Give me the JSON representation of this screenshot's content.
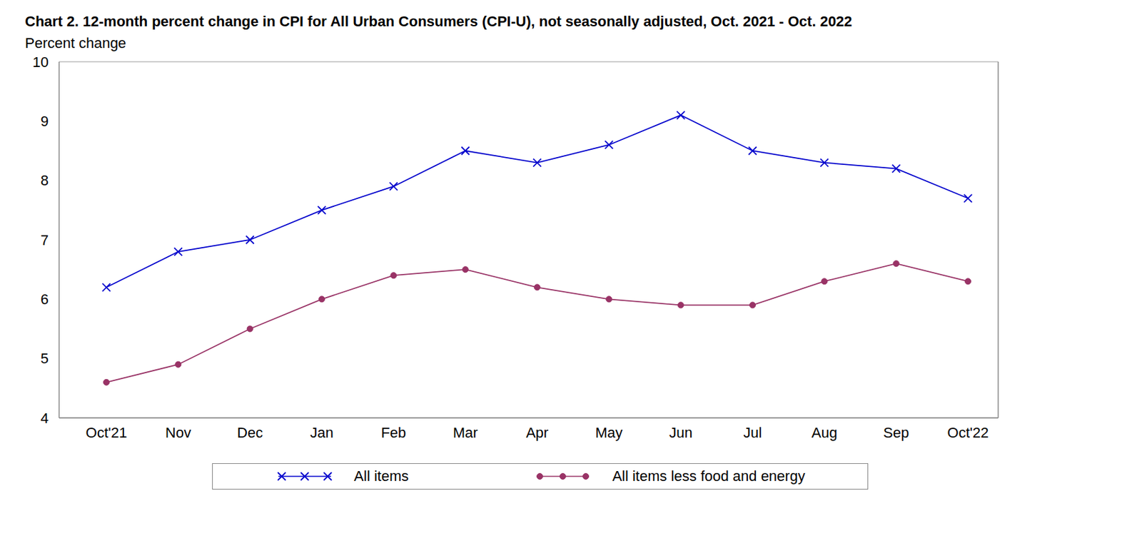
{
  "chart_data": {
    "type": "line",
    "title": "Chart 2. 12-month percent change in CPI for All Urban Consumers (CPI-U), not seasonally adjusted, Oct. 2021 - Oct. 2022",
    "y_label": "Percent change",
    "categories": [
      "Oct'21",
      "Nov",
      "Dec",
      "Jan",
      "Feb",
      "Mar",
      "Apr",
      "May",
      "Jun",
      "Jul",
      "Aug",
      "Sep",
      "Oct'22"
    ],
    "series": [
      {
        "name": "All items",
        "color": "#0000cc",
        "marker": "x",
        "line_style": "solid",
        "values": [
          6.2,
          6.8,
          7.0,
          7.5,
          7.9,
          8.5,
          8.3,
          8.6,
          9.1,
          8.5,
          8.3,
          8.2,
          7.7
        ]
      },
      {
        "name": "All items less food and energy",
        "color": "#993366",
        "marker": "circle",
        "line_style": "solid",
        "values": [
          4.6,
          4.9,
          5.5,
          6.0,
          6.4,
          6.5,
          6.2,
          6.0,
          5.9,
          5.9,
          6.3,
          6.6,
          6.3
        ]
      }
    ],
    "ylim": [
      4,
      10
    ],
    "yticks": [
      4,
      5,
      6,
      7,
      8,
      9,
      10
    ],
    "grid": true,
    "legend": "bottom"
  }
}
